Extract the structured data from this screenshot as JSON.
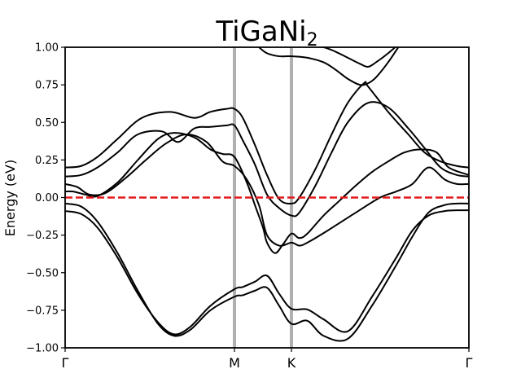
{
  "chart_data": {
    "type": "line",
    "title": {
      "main": "TiGaNi",
      "subscript": "2"
    },
    "xlabel": "",
    "ylabel": "Energy (eV)",
    "xlim": [
      0,
      1
    ],
    "ylim": [
      -1.0,
      1.0
    ],
    "x_ticks": [
      {
        "label": "Γ",
        "value": 0.0
      },
      {
        "label": "M",
        "value": 0.4194
      },
      {
        "label": "K",
        "value": 0.5605
      },
      {
        "label": "Γ",
        "value": 1.0
      }
    ],
    "y_ticks": [
      {
        "label": "1.00",
        "value": 1.0
      },
      {
        "label": "0.75",
        "value": 0.75
      },
      {
        "label": "0.50",
        "value": 0.5
      },
      {
        "label": "0.25",
        "value": 0.25
      },
      {
        "label": "0.00",
        "value": 0.0
      },
      {
        "label": "−0.25",
        "value": -0.25
      },
      {
        "label": "−0.50",
        "value": -0.5
      },
      {
        "label": "−0.75",
        "value": -0.75
      },
      {
        "label": "−1.00",
        "value": -1.0
      }
    ],
    "vertical_lines": [
      0.4194,
      0.5605
    ],
    "fermi_level": 0.0,
    "grid": false,
    "colors": {
      "bands": "#000000",
      "fermi": "#e31a1c",
      "high_symmetry": "#b0b0b0"
    },
    "series": [
      {
        "x": [
          0,
          0.04,
          0.08,
          0.13,
          0.18,
          0.23,
          0.27,
          0.31,
          0.36,
          0.4194,
          0.44,
          0.47,
          0.5,
          0.53,
          0.5605,
          0.6,
          0.64,
          0.7,
          0.76,
          0.82,
          0.86,
          0.9,
          0.94,
          0.97,
          1.0
        ],
        "y": [
          -0.09,
          -0.11,
          -0.2,
          -0.4,
          -0.64,
          -0.83,
          -0.91,
          -0.86,
          -0.72,
          -0.61,
          -0.595,
          -0.56,
          -0.52,
          -0.64,
          -0.74,
          -0.745,
          -0.81,
          -0.89,
          -0.66,
          -0.4,
          -0.22,
          -0.12,
          -0.09,
          -0.085,
          -0.085
        ]
      },
      {
        "x": [
          0,
          0.04,
          0.08,
          0.13,
          0.18,
          0.23,
          0.27,
          0.31,
          0.36,
          0.4194,
          0.44,
          0.47,
          0.5,
          0.53,
          0.5605,
          0.6,
          0.64,
          0.7,
          0.76,
          0.82,
          0.86,
          0.9,
          0.94,
          0.97,
          1.0
        ],
        "y": [
          -0.04,
          -0.06,
          -0.16,
          -0.37,
          -0.62,
          -0.84,
          -0.92,
          -0.88,
          -0.75,
          -0.66,
          -0.65,
          -0.62,
          -0.6,
          -0.72,
          -0.84,
          -0.82,
          -0.92,
          -0.94,
          -0.72,
          -0.45,
          -0.26,
          -0.1,
          -0.05,
          -0.04,
          -0.04
        ]
      },
      {
        "x": [
          0,
          0.03,
          0.06,
          0.1,
          0.15,
          0.2,
          0.25,
          0.3,
          0.35,
          0.39,
          0.4194,
          0.45,
          0.48,
          0.5,
          0.53,
          0.5605,
          0.58,
          0.6,
          0.65,
          0.72,
          0.78,
          0.82,
          0.86,
          0.9,
          0.94,
          0.97,
          1.0
        ],
        "y": [
          0.09,
          0.07,
          0.02,
          0.03,
          0.13,
          0.25,
          0.36,
          0.42,
          0.37,
          0.24,
          0.21,
          0.12,
          -0.05,
          -0.25,
          -0.32,
          -0.3,
          -0.32,
          -0.3,
          -0.22,
          -0.1,
          0.0,
          0.04,
          0.09,
          0.2,
          0.12,
          0.09,
          0.09
        ]
      },
      {
        "x": [
          0,
          0.02,
          0.05,
          0.08,
          0.13,
          0.18,
          0.23,
          0.27,
          0.32,
          0.36,
          0.39,
          0.4194,
          0.45,
          0.47,
          0.49,
          0.5,
          0.52,
          0.54,
          0.5605,
          0.58,
          0.6,
          0.64,
          0.68,
          0.72,
          0.76,
          0.8,
          0.84,
          0.88,
          0.92,
          0.95,
          1.0
        ],
        "y": [
          0.04,
          0.04,
          0.02,
          0.01,
          0.1,
          0.25,
          0.39,
          0.43,
          0.4,
          0.32,
          0.29,
          0.27,
          0.1,
          -0.05,
          -0.2,
          -0.3,
          -0.37,
          -0.31,
          -0.24,
          -0.27,
          -0.24,
          -0.12,
          -0.02,
          0.08,
          0.17,
          0.24,
          0.3,
          0.32,
          0.3,
          0.2,
          0.15
        ]
      },
      {
        "x": [
          0,
          0.04,
          0.08,
          0.13,
          0.18,
          0.24,
          0.28,
          0.32,
          0.36,
          0.4,
          0.4194,
          0.44,
          0.47,
          0.5,
          0.53,
          0.5605,
          0.58,
          0.62,
          0.66,
          0.7,
          0.75,
          0.8,
          0.85,
          0.89,
          0.93,
          0.97,
          1.0
        ],
        "y": [
          0.14,
          0.15,
          0.2,
          0.3,
          0.42,
          0.44,
          0.37,
          0.46,
          0.47,
          0.48,
          0.48,
          0.38,
          0.22,
          0.02,
          -0.07,
          -0.12,
          -0.1,
          0.08,
          0.3,
          0.5,
          0.63,
          0.6,
          0.46,
          0.33,
          0.2,
          0.15,
          0.14
        ]
      },
      {
        "x": [
          0,
          0.04,
          0.08,
          0.13,
          0.19,
          0.26,
          0.32,
          0.36,
          0.4,
          0.4194,
          0.44,
          0.47,
          0.5,
          0.53,
          0.5605,
          0.58,
          0.62,
          0.66,
          0.7,
          0.74,
          0.75,
          0.8,
          0.85,
          0.89,
          0.93,
          0.97,
          1.0
        ],
        "y": [
          0.2,
          0.21,
          0.27,
          0.39,
          0.53,
          0.57,
          0.53,
          0.57,
          0.59,
          0.59,
          0.53,
          0.35,
          0.15,
          -0.01,
          -0.04,
          0.0,
          0.19,
          0.42,
          0.63,
          0.76,
          0.74,
          0.57,
          0.42,
          0.3,
          0.24,
          0.21,
          0.2
        ]
      },
      {
        "x": [
          0.48,
          0.5,
          0.53,
          0.5605,
          0.6,
          0.64,
          0.67,
          0.7,
          0.73,
          0.75,
          0.77,
          0.8,
          0.83
        ],
        "y": [
          1.0,
          0.96,
          0.94,
          0.94,
          0.93,
          0.9,
          0.85,
          0.79,
          0.75,
          0.76,
          0.8,
          0.9,
          1.02
        ]
      },
      {
        "x": [
          0.5605,
          0.6,
          0.64,
          0.67,
          0.7,
          0.73,
          0.75,
          0.77,
          0.8,
          0.83
        ],
        "y": [
          1.02,
          1.01,
          1.0,
          0.97,
          0.93,
          0.89,
          0.87,
          0.9,
          0.96,
          1.03
        ]
      }
    ]
  }
}
